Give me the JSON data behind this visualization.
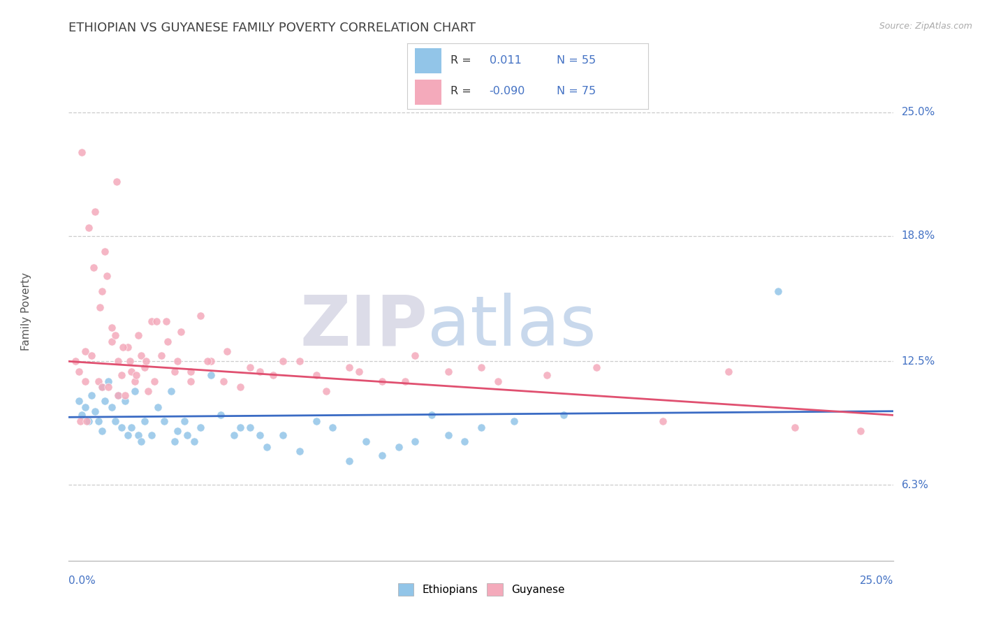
{
  "title": "ETHIOPIAN VS GUYANESE FAMILY POVERTY CORRELATION CHART",
  "source": "Source: ZipAtlas.com",
  "ylabel": "Family Poverty",
  "xmin": 0.0,
  "xmax": 25.0,
  "ymin": 2.5,
  "ymax": 27.5,
  "ethiopian_color": "#92C5E8",
  "guyanese_color": "#F4AABB",
  "ethiopian_line_color": "#3A6BC4",
  "guyanese_line_color": "#E05070",
  "axis_label_color": "#4472C4",
  "ethiopian_R": 0.011,
  "ethiopian_N": 55,
  "guyanese_R": -0.09,
  "guyanese_N": 75,
  "ytick_values": [
    6.3,
    12.5,
    18.8,
    25.0
  ],
  "ytick_labels": [
    "6.3%",
    "12.5%",
    "18.8%",
    "25.0%"
  ],
  "ethiopian_scatter_x": [
    0.3,
    0.4,
    0.5,
    0.6,
    0.7,
    0.8,
    0.9,
    1.0,
    1.0,
    1.1,
    1.2,
    1.3,
    1.4,
    1.5,
    1.6,
    1.7,
    1.8,
    1.9,
    2.0,
    2.1,
    2.2,
    2.3,
    2.5,
    2.7,
    2.9,
    3.1,
    3.3,
    3.5,
    3.8,
    4.0,
    4.3,
    4.6,
    5.0,
    5.5,
    6.0,
    6.5,
    7.0,
    7.5,
    8.0,
    9.0,
    9.5,
    10.5,
    11.0,
    12.0,
    12.5,
    13.5,
    15.0,
    21.5,
    10.0,
    11.5,
    5.2,
    5.8,
    3.2,
    3.6,
    8.5
  ],
  "ethiopian_scatter_y": [
    10.5,
    9.8,
    10.2,
    9.5,
    10.8,
    10.0,
    9.5,
    11.2,
    9.0,
    10.5,
    11.5,
    10.2,
    9.5,
    10.8,
    9.2,
    10.5,
    8.8,
    9.2,
    11.0,
    8.8,
    8.5,
    9.5,
    8.8,
    10.2,
    9.5,
    11.0,
    9.0,
    9.5,
    8.5,
    9.2,
    11.8,
    9.8,
    8.8,
    9.2,
    8.2,
    8.8,
    8.0,
    9.5,
    9.2,
    8.5,
    7.8,
    8.5,
    9.8,
    8.5,
    9.2,
    9.5,
    9.8,
    16.0,
    8.2,
    8.8,
    9.2,
    8.8,
    8.5,
    8.8,
    7.5
  ],
  "guyanese_scatter_x": [
    0.2,
    0.3,
    0.4,
    0.5,
    0.5,
    0.6,
    0.7,
    0.8,
    0.9,
    1.0,
    1.0,
    1.1,
    1.2,
    1.3,
    1.3,
    1.4,
    1.5,
    1.5,
    1.6,
    1.7,
    1.8,
    1.9,
    2.0,
    2.1,
    2.2,
    2.3,
    2.4,
    2.5,
    2.6,
    2.8,
    3.0,
    3.2,
    3.4,
    3.7,
    4.0,
    4.3,
    4.8,
    5.2,
    5.8,
    6.2,
    7.0,
    7.8,
    8.5,
    9.5,
    10.5,
    11.5,
    13.0,
    14.5,
    16.0,
    18.0,
    20.0,
    22.0,
    24.0,
    0.35,
    0.55,
    0.75,
    0.95,
    1.15,
    1.45,
    1.65,
    1.85,
    2.05,
    2.35,
    2.65,
    2.95,
    3.3,
    3.7,
    4.2,
    4.7,
    5.5,
    6.5,
    7.5,
    8.8,
    10.2,
    12.5
  ],
  "guyanese_scatter_y": [
    12.5,
    12.0,
    23.0,
    11.5,
    13.0,
    19.2,
    12.8,
    20.0,
    11.5,
    16.0,
    11.2,
    18.0,
    11.2,
    14.2,
    13.5,
    13.8,
    10.8,
    12.5,
    11.8,
    10.8,
    13.2,
    12.0,
    11.5,
    13.8,
    12.8,
    12.2,
    11.0,
    14.5,
    11.5,
    12.8,
    13.5,
    12.0,
    14.0,
    11.5,
    14.8,
    12.5,
    13.0,
    11.2,
    12.0,
    11.8,
    12.5,
    11.0,
    12.2,
    11.5,
    12.8,
    12.0,
    11.5,
    11.8,
    12.2,
    9.5,
    12.0,
    9.2,
    9.0,
    9.5,
    9.5,
    17.2,
    15.2,
    16.8,
    21.5,
    13.2,
    12.5,
    11.8,
    12.5,
    14.5,
    14.5,
    12.5,
    12.0,
    12.5,
    11.5,
    12.2,
    12.5,
    11.8,
    12.0,
    11.5,
    12.2
  ],
  "eth_line_x0": 0.0,
  "eth_line_x1": 25.0,
  "eth_line_y0": 9.7,
  "eth_line_y1": 10.0,
  "guy_line_x0": 0.0,
  "guy_line_x1": 25.0,
  "guy_line_y0": 12.5,
  "guy_line_y1": 9.8
}
